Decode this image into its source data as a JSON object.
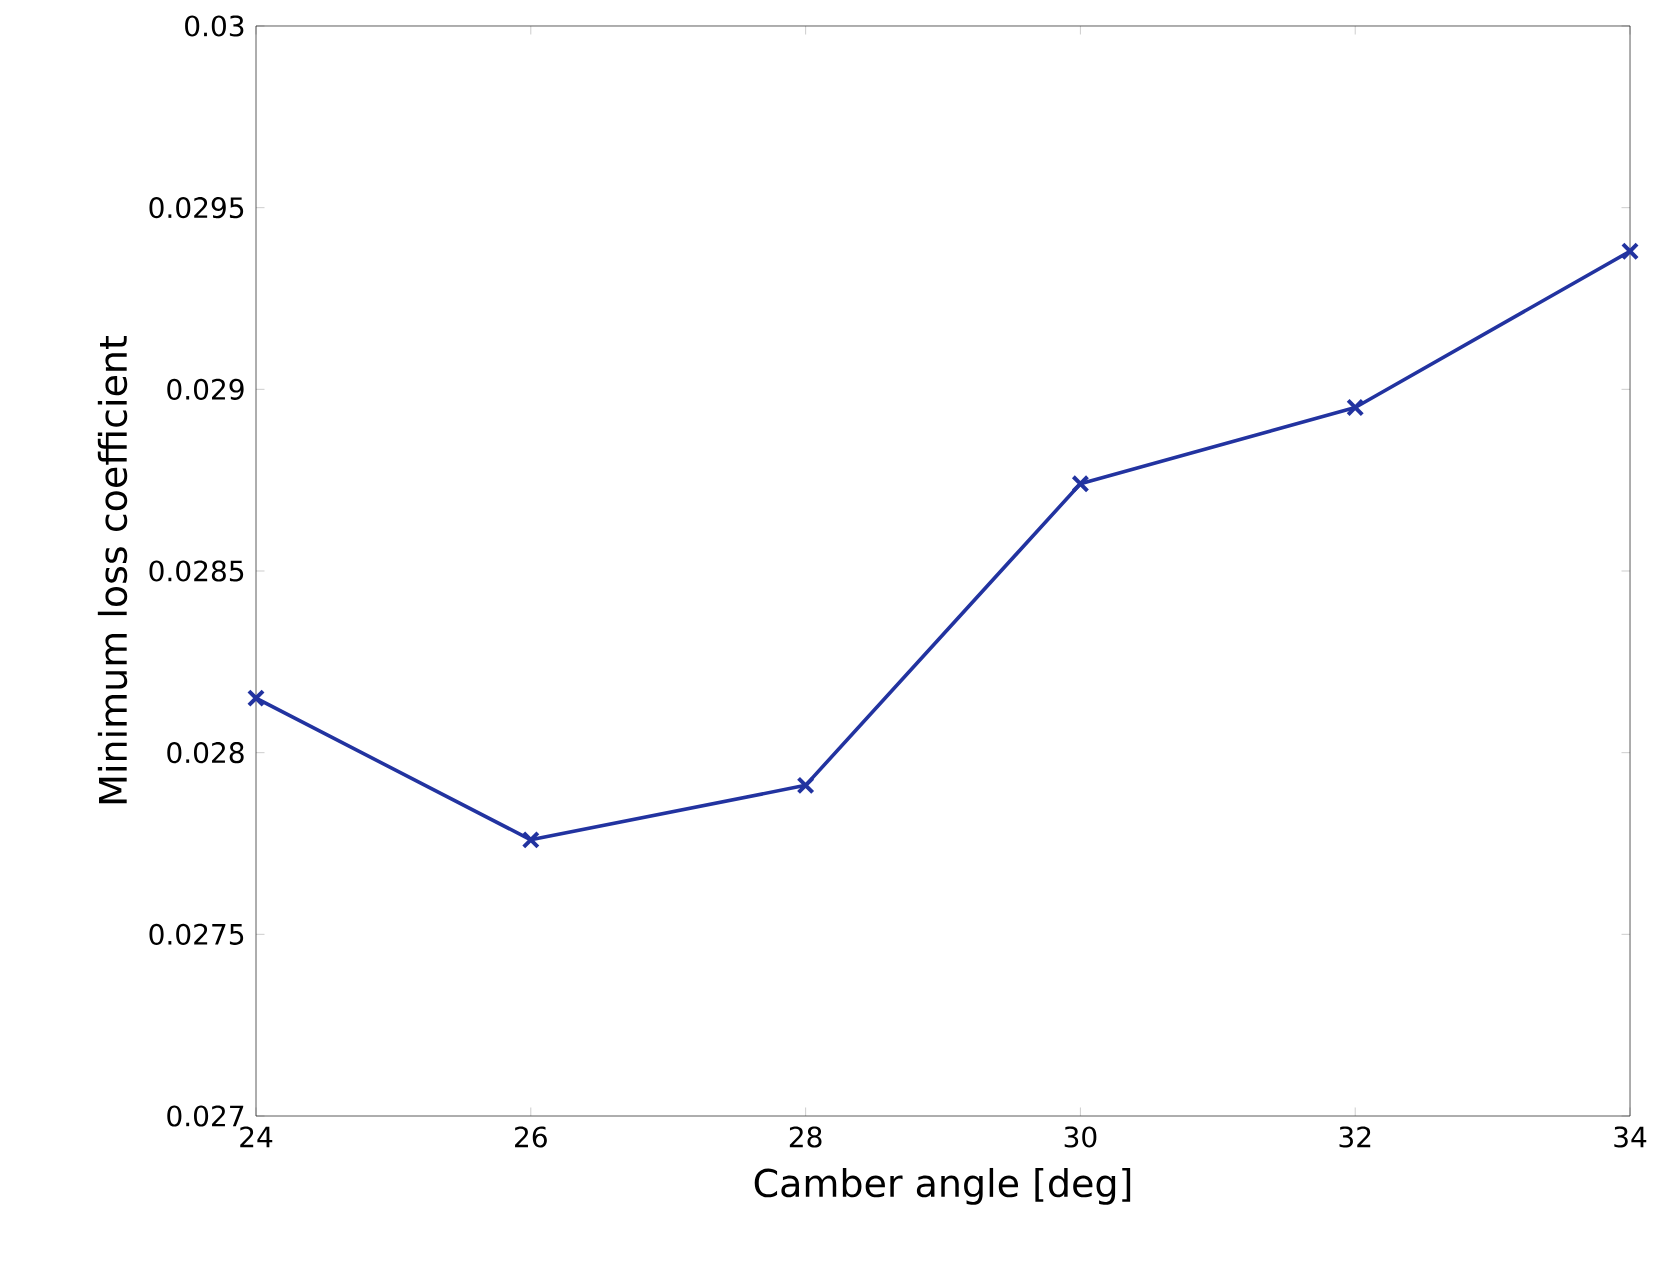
{
  "chart_data": {
    "type": "line",
    "xlabel": "Camber angle [deg]",
    "ylabel": "Minimum loss coefficient",
    "x": [
      24,
      26,
      28,
      30,
      32,
      34
    ],
    "series": [
      {
        "color": "#2233a0",
        "values": [
          0.02815,
          0.02776,
          0.02791,
          0.02874,
          0.02895,
          0.02938
        ]
      }
    ],
    "xlim": [
      24,
      34
    ],
    "xticks": [
      24,
      26,
      28,
      30,
      32,
      34
    ],
    "ylim": [
      0.027,
      0.03
    ],
    "yticks": [
      0.027,
      0.0275,
      0.028,
      0.0285,
      0.029,
      0.0295,
      0.03
    ],
    "marker": "cross",
    "line_style": "solid"
  }
}
